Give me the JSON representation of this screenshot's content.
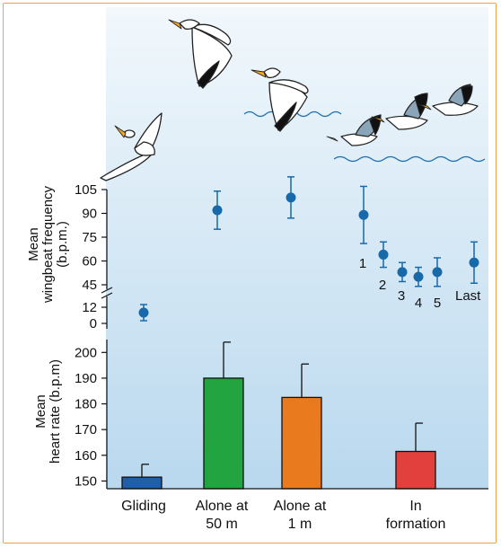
{
  "colors": {
    "frame": "#f0a04b",
    "background_top": "#f2f8fc",
    "background_bottom": "#b9d8ee",
    "marker": "#1769aa",
    "water": "#1c6fb5",
    "bird_head": "#f4a726"
  },
  "icons": [
    "gliding-pelican-icon",
    "flapping-pelican-icon",
    "flapping-pelican-low-icon",
    "pelican-formation-icon",
    "water-waves-icon"
  ],
  "chart_data": [
    {
      "type": "scatter",
      "error_bars": true,
      "ylabel_lines": [
        "Mean",
        "wingbeat frequency",
        "(b.p.m.)"
      ],
      "yticks_upper": [
        "105",
        "90",
        "75",
        "60",
        "45"
      ],
      "yticks_lower": [
        "12",
        "0"
      ],
      "axis_break": true,
      "ylim_upper": [
        45,
        105
      ],
      "ylim_lower": [
        0,
        12
      ],
      "points": [
        {
          "group": "Gliding",
          "value": 8,
          "error": 6,
          "label": ""
        },
        {
          "group": "Alone at 50 m",
          "value": 92,
          "error": 12,
          "label": ""
        },
        {
          "group": "Alone at 1 m",
          "value": 100,
          "error": 13,
          "label": ""
        },
        {
          "group": "In formation",
          "value": 89,
          "error": 18,
          "label": "1"
        },
        {
          "group": "In formation",
          "value": 64,
          "error": 8,
          "label": "2"
        },
        {
          "group": "In formation",
          "value": 53,
          "error": 6,
          "label": "3"
        },
        {
          "group": "In formation",
          "value": 50,
          "error": 6,
          "label": "4"
        },
        {
          "group": "In formation",
          "value": 53,
          "error": 9,
          "label": "5"
        },
        {
          "group": "In formation",
          "value": 59,
          "error": 13,
          "label": "Last"
        }
      ]
    },
    {
      "type": "bar",
      "ylabel_lines": [
        "Mean",
        "heart rate (b.p.m)"
      ],
      "yticks": [
        "200",
        "190",
        "180",
        "170",
        "160",
        "150"
      ],
      "ylim": [
        147,
        205
      ],
      "categories": [
        [
          "Gliding"
        ],
        [
          "Alone at",
          "50 m"
        ],
        [
          "Alone at",
          "1 m"
        ],
        [
          "In",
          "formation"
        ]
      ],
      "values": [
        151.5,
        190,
        182.5,
        161.5
      ],
      "errors": [
        5,
        14,
        13,
        11
      ],
      "colors": [
        "#1f5ea8",
        "#22a440",
        "#ea7a1e",
        "#e2403d"
      ]
    }
  ]
}
